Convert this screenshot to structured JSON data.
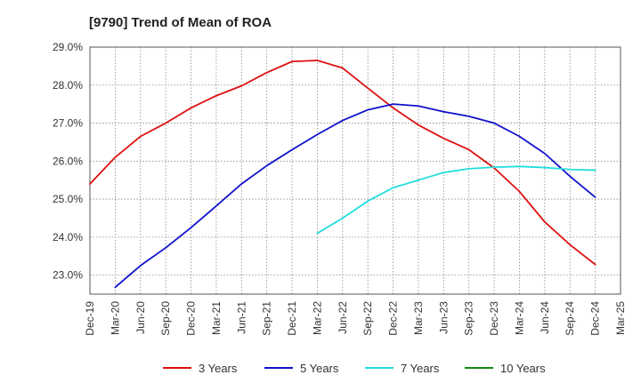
{
  "chart_data": {
    "type": "line",
    "title": "[9790]  Trend of Mean of ROA",
    "xlabel": "",
    "ylabel": "",
    "x_ticks": [
      "Dec-19",
      "Mar-20",
      "Jun-20",
      "Sep-20",
      "Dec-20",
      "Mar-21",
      "Jun-21",
      "Sep-21",
      "Dec-21",
      "Mar-22",
      "Jun-22",
      "Sep-22",
      "Dec-22",
      "Mar-23",
      "Jun-23",
      "Sep-23",
      "Dec-23",
      "Mar-24",
      "Jun-24",
      "Sep-24",
      "Dec-24",
      "Mar-25"
    ],
    "y_ticks": [
      "23.0%",
      "24.0%",
      "25.0%",
      "26.0%",
      "27.0%",
      "28.0%",
      "29.0%"
    ],
    "ylim": [
      22.5,
      29.0
    ],
    "grid": true,
    "legend_position": "bottom",
    "series": [
      {
        "name": "3 Years",
        "color": "#dd1111",
        "x": [
          "Dec-19",
          "Mar-20",
          "Jun-20",
          "Sep-20",
          "Dec-20",
          "Mar-21",
          "Jun-21",
          "Sep-21",
          "Dec-21",
          "Mar-22",
          "Jun-22",
          "Sep-22",
          "Dec-22",
          "Mar-23",
          "Jun-23",
          "Sep-23",
          "Dec-23",
          "Mar-24",
          "Jun-24",
          "Sep-24",
          "Dec-24"
        ],
        "values": [
          25.4,
          26.1,
          26.65,
          27.0,
          27.4,
          27.72,
          27.98,
          28.33,
          28.62,
          28.65,
          28.45,
          27.92,
          27.4,
          26.95,
          26.6,
          26.3,
          25.82,
          25.2,
          24.4,
          23.8,
          23.28
        ]
      },
      {
        "name": "5 Years",
        "color": "#1111cc",
        "x": [
          "Mar-20",
          "Jun-20",
          "Sep-20",
          "Dec-20",
          "Mar-21",
          "Jun-21",
          "Sep-21",
          "Dec-21",
          "Mar-22",
          "Jun-22",
          "Sep-22",
          "Dec-22",
          "Mar-23",
          "Jun-23",
          "Sep-23",
          "Dec-23",
          "Mar-24",
          "Jun-24",
          "Sep-24",
          "Dec-24"
        ],
        "values": [
          22.68,
          23.25,
          23.72,
          24.25,
          24.82,
          25.4,
          25.88,
          26.3,
          26.7,
          27.07,
          27.35,
          27.5,
          27.45,
          27.3,
          27.18,
          27.0,
          26.65,
          26.2,
          25.6,
          25.05
        ]
      },
      {
        "name": "7 Years",
        "color": "#22dddd",
        "x": [
          "Mar-22",
          "Jun-22",
          "Sep-22",
          "Dec-22",
          "Mar-23",
          "Jun-23",
          "Sep-23",
          "Dec-23",
          "Mar-24",
          "Jun-24",
          "Sep-24",
          "Dec-24"
        ],
        "values": [
          24.1,
          24.5,
          24.95,
          25.3,
          25.5,
          25.7,
          25.8,
          25.84,
          25.86,
          25.83,
          25.78,
          25.76
        ]
      },
      {
        "name": "10 Years",
        "color": "#118811",
        "x": [],
        "values": []
      }
    ]
  }
}
